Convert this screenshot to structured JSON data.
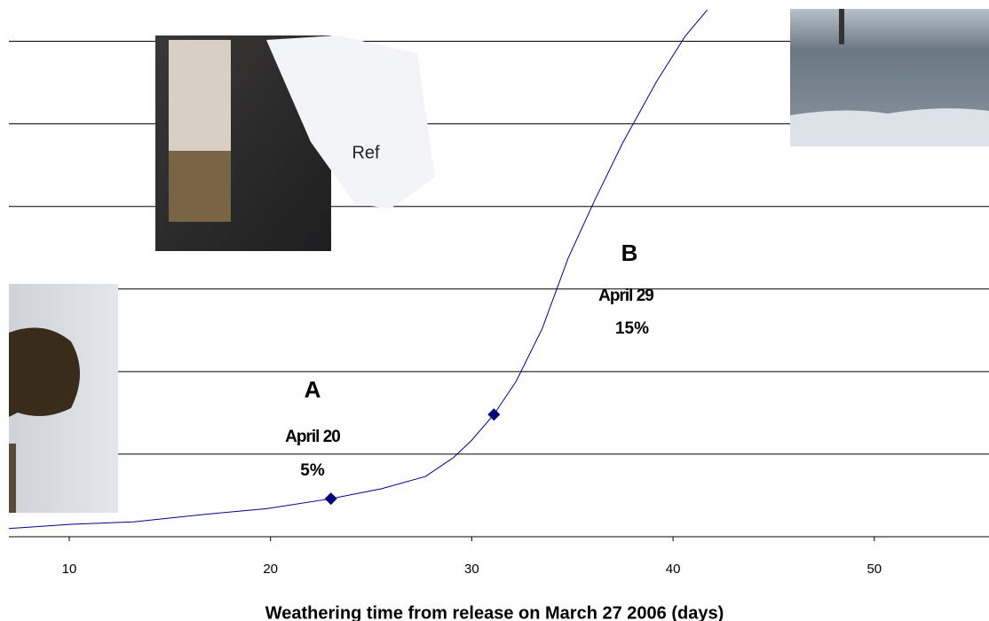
{
  "chart_data": {
    "type": "line",
    "x_label": "Weathering time from release on March 27 2006 (days)",
    "x": [
      7.0,
      10.1,
      13.2,
      16.7,
      19.8,
      23.0,
      25.5,
      27.7,
      29.1,
      30.0,
      31.1,
      32.2,
      33.5,
      34.8,
      36.1,
      37.5,
      39.2,
      40.6,
      41.7
    ],
    "series": [
      {
        "color": "#00008b",
        "values": [
          0.1,
          0.15,
          0.18,
          0.27,
          0.34,
          0.46,
          0.58,
          0.73,
          0.96,
          1.17,
          1.48,
          1.88,
          2.52,
          3.38,
          4.07,
          4.77,
          5.52,
          6.06,
          6.38
        ]
      }
    ],
    "points": {
      "color": "#00007a",
      "x": [
        23.0,
        31.1
      ],
      "values": [
        0.46,
        1.48
      ]
    },
    "annotations": {
      "a_letter": "A",
      "a_date": "April 20",
      "a_pct": "5%",
      "b_letter": "B",
      "b_date": "April 29",
      "b_pct": "15%",
      "ref": "Ref"
    },
    "xlim": [
      7,
      55.7
    ],
    "xticks": [
      10,
      20,
      30,
      40,
      50
    ],
    "ylim": [
      0,
      6.5
    ],
    "yticks": [
      0,
      1,
      2,
      3,
      4,
      5,
      6
    ],
    "grid": true
  }
}
